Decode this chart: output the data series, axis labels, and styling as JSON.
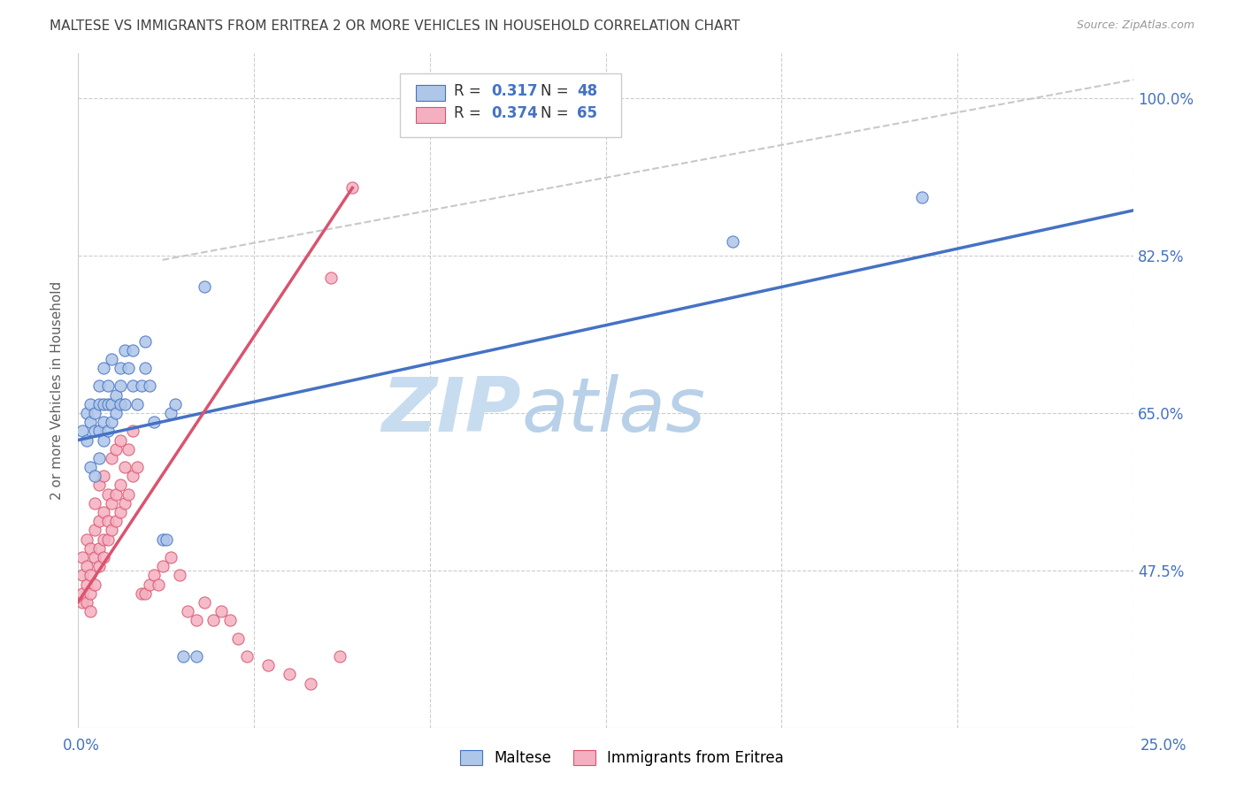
{
  "title": "MALTESE VS IMMIGRANTS FROM ERITREA 2 OR MORE VEHICLES IN HOUSEHOLD CORRELATION CHART",
  "source": "Source: ZipAtlas.com",
  "ylabel_label": "2 or more Vehicles in Household",
  "ytick_labels": [
    "100.0%",
    "82.5%",
    "65.0%",
    "47.5%"
  ],
  "legend_blue_label": "Maltese",
  "legend_pink_label": "Immigrants from Eritrea",
  "blue_color": "#aec6e8",
  "pink_color": "#f4afc0",
  "blue_line_color": "#4472c4",
  "pink_line_color": "#d9546e",
  "diagonal_color": "#c8c8c8",
  "title_color": "#404040",
  "axis_label_color": "#4472c4",
  "watermark_color": "#ddeeff",
  "blue_scatter_x": [
    0.001,
    0.002,
    0.002,
    0.003,
    0.003,
    0.003,
    0.004,
    0.004,
    0.004,
    0.005,
    0.005,
    0.005,
    0.005,
    0.006,
    0.006,
    0.006,
    0.006,
    0.007,
    0.007,
    0.007,
    0.008,
    0.008,
    0.008,
    0.009,
    0.009,
    0.01,
    0.01,
    0.01,
    0.011,
    0.011,
    0.012,
    0.013,
    0.013,
    0.014,
    0.015,
    0.016,
    0.016,
    0.017,
    0.018,
    0.02,
    0.021,
    0.022,
    0.023,
    0.025,
    0.028,
    0.03,
    0.155,
    0.2
  ],
  "blue_scatter_y": [
    0.63,
    0.62,
    0.65,
    0.59,
    0.64,
    0.66,
    0.58,
    0.63,
    0.65,
    0.6,
    0.63,
    0.66,
    0.68,
    0.62,
    0.64,
    0.66,
    0.7,
    0.63,
    0.66,
    0.68,
    0.64,
    0.66,
    0.71,
    0.65,
    0.67,
    0.66,
    0.68,
    0.7,
    0.66,
    0.72,
    0.7,
    0.68,
    0.72,
    0.66,
    0.68,
    0.7,
    0.73,
    0.68,
    0.64,
    0.51,
    0.51,
    0.65,
    0.66,
    0.38,
    0.38,
    0.79,
    0.84,
    0.89
  ],
  "pink_scatter_x": [
    0.001,
    0.001,
    0.001,
    0.001,
    0.002,
    0.002,
    0.002,
    0.002,
    0.003,
    0.003,
    0.003,
    0.003,
    0.004,
    0.004,
    0.004,
    0.004,
    0.005,
    0.005,
    0.005,
    0.005,
    0.006,
    0.006,
    0.006,
    0.006,
    0.007,
    0.007,
    0.007,
    0.008,
    0.008,
    0.008,
    0.009,
    0.009,
    0.009,
    0.01,
    0.01,
    0.01,
    0.011,
    0.011,
    0.012,
    0.012,
    0.013,
    0.013,
    0.014,
    0.015,
    0.016,
    0.017,
    0.018,
    0.019,
    0.02,
    0.022,
    0.024,
    0.026,
    0.028,
    0.03,
    0.032,
    0.034,
    0.036,
    0.038,
    0.04,
    0.045,
    0.05,
    0.055,
    0.06,
    0.062,
    0.065
  ],
  "pink_scatter_y": [
    0.44,
    0.45,
    0.47,
    0.49,
    0.44,
    0.46,
    0.48,
    0.51,
    0.43,
    0.45,
    0.47,
    0.5,
    0.46,
    0.49,
    0.52,
    0.55,
    0.48,
    0.5,
    0.53,
    0.57,
    0.49,
    0.51,
    0.54,
    0.58,
    0.51,
    0.53,
    0.56,
    0.52,
    0.55,
    0.6,
    0.53,
    0.56,
    0.61,
    0.54,
    0.57,
    0.62,
    0.55,
    0.59,
    0.56,
    0.61,
    0.58,
    0.63,
    0.59,
    0.45,
    0.45,
    0.46,
    0.47,
    0.46,
    0.48,
    0.49,
    0.47,
    0.43,
    0.42,
    0.44,
    0.42,
    0.43,
    0.42,
    0.4,
    0.38,
    0.37,
    0.36,
    0.35,
    0.8,
    0.38,
    0.9
  ],
  "blue_line_x": [
    0.0,
    0.25
  ],
  "blue_line_y": [
    0.62,
    0.875
  ],
  "pink_line_x": [
    0.0,
    0.065
  ],
  "pink_line_y": [
    0.44,
    0.9
  ],
  "diag_line_x": [
    0.02,
    0.25
  ],
  "diag_line_y": [
    0.82,
    1.02
  ],
  "xlim": [
    0.0,
    0.25
  ],
  "ylim": [
    0.3,
    1.05
  ],
  "ytick_vals": [
    1.0,
    0.825,
    0.65,
    0.475
  ],
  "xtick_positions": [
    0.0,
    0.041667,
    0.083333,
    0.125,
    0.166667,
    0.208333,
    0.25
  ]
}
